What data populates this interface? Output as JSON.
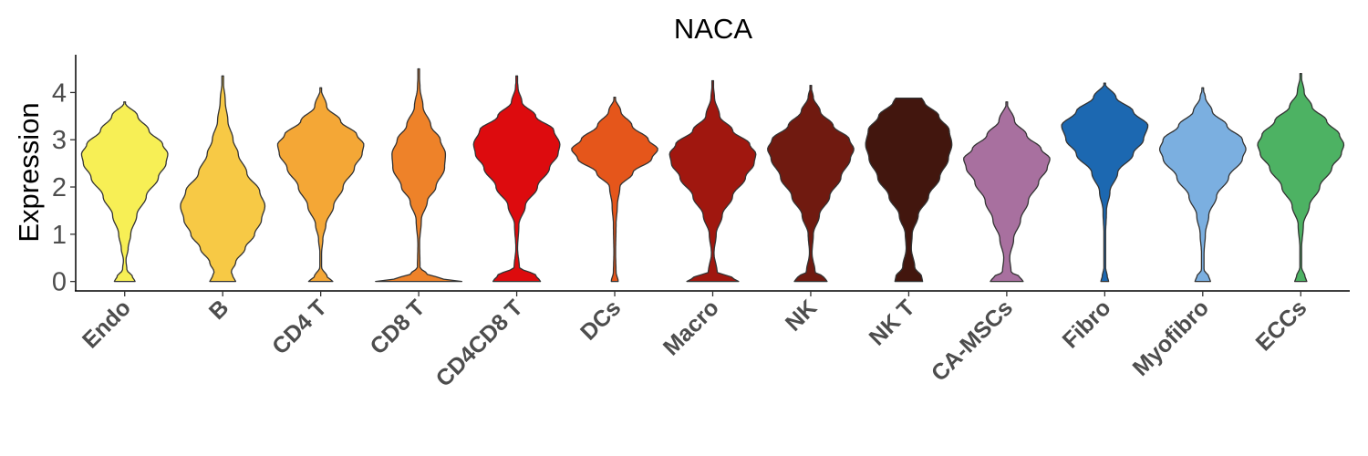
{
  "chart_data": {
    "type": "violin",
    "title": "NACA",
    "xlabel": "",
    "ylabel": "Expression",
    "ylim": [
      -0.2,
      4.8
    ],
    "yticks": [
      "0",
      "1",
      "2",
      "3",
      "4"
    ],
    "grid": false,
    "legend": "none",
    "categories": [
      "Endo",
      "B",
      "CD4 T",
      "CD8 T",
      "CD4CD8 T",
      "DCs",
      "Macro",
      "NK",
      "NK T",
      "CA-MSCs",
      "Fibro",
      "Myofibro",
      "ECCs"
    ],
    "series": [
      {
        "category": "Endo",
        "color": "#F7EF55",
        "max": 3.8,
        "profile": [
          [
            0,
            0.24
          ],
          [
            0.1,
            0.18
          ],
          [
            0.25,
            0.05
          ],
          [
            0.45,
            0.03
          ],
          [
            0.7,
            0.08
          ],
          [
            1.0,
            0.14
          ],
          [
            1.4,
            0.28
          ],
          [
            1.8,
            0.5
          ],
          [
            2.2,
            0.78
          ],
          [
            2.5,
            0.96
          ],
          [
            2.7,
            1.0
          ],
          [
            2.9,
            0.88
          ],
          [
            3.2,
            0.56
          ],
          [
            3.5,
            0.3
          ],
          [
            3.8,
            0.0
          ]
        ]
      },
      {
        "category": "B",
        "color": "#F7C945",
        "max": 4.35,
        "profile": [
          [
            0,
            0.3
          ],
          [
            0.1,
            0.24
          ],
          [
            0.2,
            0.2
          ],
          [
            0.4,
            0.3
          ],
          [
            0.7,
            0.52
          ],
          [
            1.0,
            0.74
          ],
          [
            1.3,
            0.9
          ],
          [
            1.6,
            0.98
          ],
          [
            1.9,
            0.86
          ],
          [
            2.3,
            0.56
          ],
          [
            2.7,
            0.36
          ],
          [
            3.0,
            0.24
          ],
          [
            3.4,
            0.12
          ],
          [
            3.8,
            0.06
          ],
          [
            4.35,
            0.0
          ]
        ]
      },
      {
        "category": "CD4 T",
        "color": "#F4A736",
        "max": 4.1,
        "profile": [
          [
            0,
            0.28
          ],
          [
            0.1,
            0.15
          ],
          [
            0.3,
            0.02
          ],
          [
            0.6,
            0.02
          ],
          [
            0.9,
            0.05
          ],
          [
            1.2,
            0.12
          ],
          [
            1.6,
            0.3
          ],
          [
            2.0,
            0.52
          ],
          [
            2.4,
            0.78
          ],
          [
            2.7,
            0.96
          ],
          [
            2.9,
            1.0
          ],
          [
            3.1,
            0.84
          ],
          [
            3.4,
            0.46
          ],
          [
            3.7,
            0.14
          ],
          [
            4.1,
            0.0
          ]
        ]
      },
      {
        "category": "CD8 T",
        "color": "#EE8229",
        "max": 4.5,
        "profile": [
          [
            0,
            1.0
          ],
          [
            0.06,
            0.55
          ],
          [
            0.15,
            0.2
          ],
          [
            0.3,
            0.03
          ],
          [
            0.8,
            0.02
          ],
          [
            1.3,
            0.06
          ],
          [
            1.7,
            0.2
          ],
          [
            2.0,
            0.4
          ],
          [
            2.4,
            0.6
          ],
          [
            2.7,
            0.62
          ],
          [
            3.0,
            0.5
          ],
          [
            3.3,
            0.28
          ],
          [
            3.7,
            0.1
          ],
          [
            4.1,
            0.03
          ],
          [
            4.5,
            0.0
          ]
        ]
      },
      {
        "category": "CD4CD8 T",
        "color": "#DD0B0E",
        "max": 4.35,
        "profile": [
          [
            0,
            0.55
          ],
          [
            0.12,
            0.45
          ],
          [
            0.3,
            0.06
          ],
          [
            0.7,
            0.02
          ],
          [
            1.2,
            0.05
          ],
          [
            1.6,
            0.2
          ],
          [
            2.0,
            0.48
          ],
          [
            2.4,
            0.76
          ],
          [
            2.7,
            0.96
          ],
          [
            2.9,
            1.0
          ],
          [
            3.2,
            0.86
          ],
          [
            3.5,
            0.44
          ],
          [
            3.8,
            0.12
          ],
          [
            4.1,
            0.03
          ],
          [
            4.35,
            0.0
          ]
        ]
      },
      {
        "category": "DCs",
        "color": "#E5561B",
        "max": 3.9,
        "profile": [
          [
            0,
            0.08
          ],
          [
            0.2,
            0.03
          ],
          [
            0.6,
            0.02
          ],
          [
            1.2,
            0.03
          ],
          [
            1.6,
            0.06
          ],
          [
            2.0,
            0.12
          ],
          [
            2.3,
            0.42
          ],
          [
            2.6,
            0.86
          ],
          [
            2.8,
            1.0
          ],
          [
            3.0,
            0.78
          ],
          [
            3.3,
            0.4
          ],
          [
            3.6,
            0.14
          ],
          [
            3.9,
            0.0
          ]
        ]
      },
      {
        "category": "Macro",
        "color": "#A0170F",
        "max": 4.25,
        "profile": [
          [
            0,
            0.6
          ],
          [
            0.08,
            0.45
          ],
          [
            0.2,
            0.1
          ],
          [
            0.6,
            0.03
          ],
          [
            1.0,
            0.08
          ],
          [
            1.4,
            0.22
          ],
          [
            1.8,
            0.46
          ],
          [
            2.2,
            0.76
          ],
          [
            2.5,
            0.96
          ],
          [
            2.7,
            1.0
          ],
          [
            2.9,
            0.86
          ],
          [
            3.2,
            0.46
          ],
          [
            3.5,
            0.16
          ],
          [
            3.9,
            0.04
          ],
          [
            4.25,
            0.0
          ]
        ]
      },
      {
        "category": "NK",
        "color": "#701A10",
        "max": 4.15,
        "profile": [
          [
            0,
            0.38
          ],
          [
            0.1,
            0.3
          ],
          [
            0.2,
            0.1
          ],
          [
            0.6,
            0.03
          ],
          [
            1.0,
            0.06
          ],
          [
            1.4,
            0.2
          ],
          [
            1.8,
            0.44
          ],
          [
            2.2,
            0.7
          ],
          [
            2.6,
            0.92
          ],
          [
            2.8,
            1.0
          ],
          [
            3.0,
            0.9
          ],
          [
            3.3,
            0.52
          ],
          [
            3.6,
            0.22
          ],
          [
            3.9,
            0.06
          ],
          [
            4.15,
            0.0
          ]
        ]
      },
      {
        "category": "NK T",
        "color": "#42160E",
        "max": 3.88,
        "profile": [
          [
            0,
            0.32
          ],
          [
            0.1,
            0.3
          ],
          [
            0.3,
            0.14
          ],
          [
            0.7,
            0.06
          ],
          [
            1.0,
            0.08
          ],
          [
            1.4,
            0.22
          ],
          [
            1.8,
            0.46
          ],
          [
            2.2,
            0.72
          ],
          [
            2.6,
            0.92
          ],
          [
            2.9,
            1.0
          ],
          [
            3.2,
            0.94
          ],
          [
            3.5,
            0.7
          ],
          [
            3.8,
            0.36
          ],
          [
            3.88,
            0.3
          ]
        ]
      },
      {
        "category": "CA-MSCs",
        "color": "#A8709F",
        "max": 3.8,
        "profile": [
          [
            0,
            0.38
          ],
          [
            0.1,
            0.3
          ],
          [
            0.2,
            0.1
          ],
          [
            0.5,
            0.07
          ],
          [
            0.9,
            0.16
          ],
          [
            1.3,
            0.32
          ],
          [
            1.7,
            0.5
          ],
          [
            2.1,
            0.74
          ],
          [
            2.4,
            0.94
          ],
          [
            2.6,
            1.0
          ],
          [
            2.8,
            0.8
          ],
          [
            3.1,
            0.46
          ],
          [
            3.4,
            0.18
          ],
          [
            3.8,
            0.0
          ]
        ]
      },
      {
        "category": "Fibro",
        "color": "#1C68B1",
        "max": 4.2,
        "profile": [
          [
            0,
            0.09
          ],
          [
            0.1,
            0.06
          ],
          [
            0.3,
            0.02
          ],
          [
            1.0,
            0.02
          ],
          [
            1.5,
            0.04
          ],
          [
            1.9,
            0.12
          ],
          [
            2.3,
            0.3
          ],
          [
            2.7,
            0.66
          ],
          [
            3.0,
            0.9
          ],
          [
            3.3,
            1.0
          ],
          [
            3.6,
            0.66
          ],
          [
            3.9,
            0.26
          ],
          [
            4.2,
            0.0
          ]
        ]
      },
      {
        "category": "Myofibro",
        "color": "#7BAFE0",
        "max": 4.1,
        "profile": [
          [
            0,
            0.18
          ],
          [
            0.1,
            0.14
          ],
          [
            0.25,
            0.03
          ],
          [
            0.6,
            0.03
          ],
          [
            1.0,
            0.06
          ],
          [
            1.4,
            0.14
          ],
          [
            1.8,
            0.32
          ],
          [
            2.2,
            0.6
          ],
          [
            2.6,
            0.92
          ],
          [
            2.8,
            1.0
          ],
          [
            3.0,
            0.92
          ],
          [
            3.3,
            0.56
          ],
          [
            3.6,
            0.22
          ],
          [
            3.9,
            0.06
          ],
          [
            4.1,
            0.0
          ]
        ]
      },
      {
        "category": "ECCs",
        "color": "#4DB263",
        "max": 4.4,
        "profile": [
          [
            0,
            0.14
          ],
          [
            0.1,
            0.1
          ],
          [
            0.3,
            0.02
          ],
          [
            0.7,
            0.02
          ],
          [
            1.2,
            0.06
          ],
          [
            1.6,
            0.2
          ],
          [
            2.0,
            0.44
          ],
          [
            2.4,
            0.72
          ],
          [
            2.7,
            0.94
          ],
          [
            2.9,
            1.0
          ],
          [
            3.1,
            0.9
          ],
          [
            3.4,
            0.6
          ],
          [
            3.7,
            0.26
          ],
          [
            4.0,
            0.08
          ],
          [
            4.4,
            0.0
          ]
        ]
      }
    ]
  }
}
